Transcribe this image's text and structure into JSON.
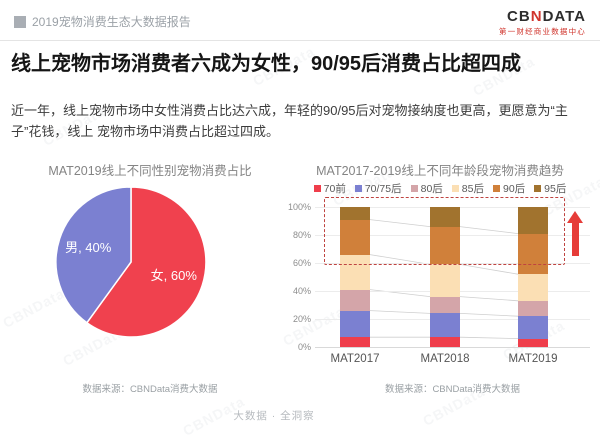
{
  "header": {
    "report_title": "2019宠物消费生态大数据报告",
    "logo_cb": "CB",
    "logo_n": "N",
    "logo_data": "DATA",
    "logo_subtitle": "第一财经商业数据中心"
  },
  "headline": "线上宠物市场消费者六成为女性，90/95后消费占比超四成",
  "body_text": "近一年，线上宠物市场中女性消费占比达六成，年轻的90/95后对宠物接纳度也更高，更愿意为“主子”花钱，线上 宠物市场中消费占比超过四成。",
  "watermark": "CBNData",
  "footer": "大数据 · 全洞察",
  "chart_data": [
    {
      "type": "pie",
      "title": "MAT2019线上不同性别宠物消费占比",
      "slices": [
        {
          "label": "女",
          "value": 60,
          "display": "女, 60%",
          "color": "#f0414e"
        },
        {
          "label": "男",
          "value": 40,
          "display": "男, 40%",
          "color": "#7b80d1"
        }
      ],
      "source": "数据来源：CBNData消费大数据"
    },
    {
      "type": "bar",
      "stacked": true,
      "title": "MAT2017-2019线上不同年龄段宠物消费趋势",
      "categories": [
        "MAT2017",
        "MAT2018",
        "MAT2019"
      ],
      "series": [
        {
          "name": "70前",
          "color": "#ef3e4b",
          "values": [
            7,
            7,
            6
          ]
        },
        {
          "name": "70/75后",
          "color": "#7b80d1",
          "values": [
            19,
            17,
            16
          ]
        },
        {
          "name": "80后",
          "color": "#d4a5a9",
          "values": [
            15,
            12,
            11
          ]
        },
        {
          "name": "85后",
          "color": "#fbdfb4",
          "values": [
            25,
            23,
            19
          ]
        },
        {
          "name": "90后",
          "color": "#d0803a",
          "values": [
            25,
            27,
            29
          ]
        },
        {
          "name": "95后",
          "color": "#a1732e",
          "values": [
            9,
            14,
            19
          ]
        }
      ],
      "y_ticks": [
        "0%",
        "20%",
        "40%",
        "60%",
        "80%",
        "100%"
      ],
      "ylim": [
        0,
        100
      ],
      "grid": true,
      "legend_position": "top",
      "annotations": {
        "dashed_box_pct_range": [
          60,
          100
        ],
        "trend_arrow": "up"
      },
      "source": "数据来源：CBNData消费大数据"
    }
  ]
}
